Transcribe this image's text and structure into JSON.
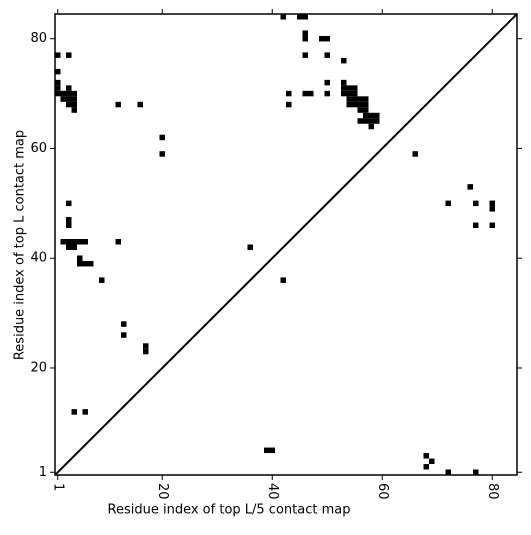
{
  "chart_data": {
    "type": "scatter",
    "marker": "square",
    "color": "#000000",
    "diagonal": true,
    "xlabel": "Residue index of top L/5 contact map",
    "ylabel": "Residue index of top L contact map",
    "xlim": [
      0.5,
      84.5
    ],
    "ylim": [
      0.5,
      84.5
    ],
    "xticks": [
      1,
      20,
      40,
      60,
      80
    ],
    "yticks": [
      1,
      20,
      40,
      60,
      80
    ],
    "series": [
      {
        "name": "contact",
        "x": [
          1,
          1,
          1,
          1,
          1,
          2,
          3,
          4,
          2,
          3,
          4,
          3,
          4,
          4,
          3,
          3,
          12,
          16,
          20,
          20,
          3,
          3,
          3,
          2,
          3,
          4,
          5,
          6,
          3,
          4,
          5,
          5,
          6,
          7,
          9,
          13,
          13,
          17,
          17,
          12,
          36,
          42,
          4,
          6,
          39,
          40,
          42,
          45,
          46,
          46,
          46,
          49,
          50,
          46,
          50,
          53,
          50,
          53,
          43,
          43,
          46,
          47,
          50,
          53,
          54,
          55,
          53,
          54,
          55,
          54,
          55,
          56,
          57,
          54,
          55,
          56,
          57,
          56,
          57,
          57,
          58,
          59,
          56,
          57,
          58,
          59,
          58,
          66,
          76,
          72,
          77,
          80,
          80,
          77,
          80,
          68,
          69,
          68,
          72,
          77
        ],
        "values": [
          77,
          74,
          72,
          71,
          70,
          70,
          70,
          70,
          69,
          69,
          69,
          68,
          68,
          67,
          71,
          77,
          68,
          68,
          62,
          59,
          50,
          47,
          46,
          43,
          43,
          43,
          43,
          43,
          42,
          42,
          40,
          39,
          39,
          39,
          36,
          28,
          26,
          24,
          23,
          43,
          42,
          36,
          12,
          12,
          5,
          5,
          84,
          84,
          84,
          81,
          80,
          80,
          80,
          77,
          77,
          76,
          72,
          72,
          70,
          68,
          70,
          70,
          70,
          71,
          71,
          71,
          70,
          70,
          70,
          69,
          69,
          69,
          69,
          68,
          68,
          68,
          68,
          67,
          67,
          66,
          66,
          66,
          65,
          65,
          65,
          65,
          64,
          59,
          53,
          50,
          50,
          50,
          49,
          46,
          46,
          4,
          3,
          2,
          1,
          1
        ]
      }
    ]
  }
}
